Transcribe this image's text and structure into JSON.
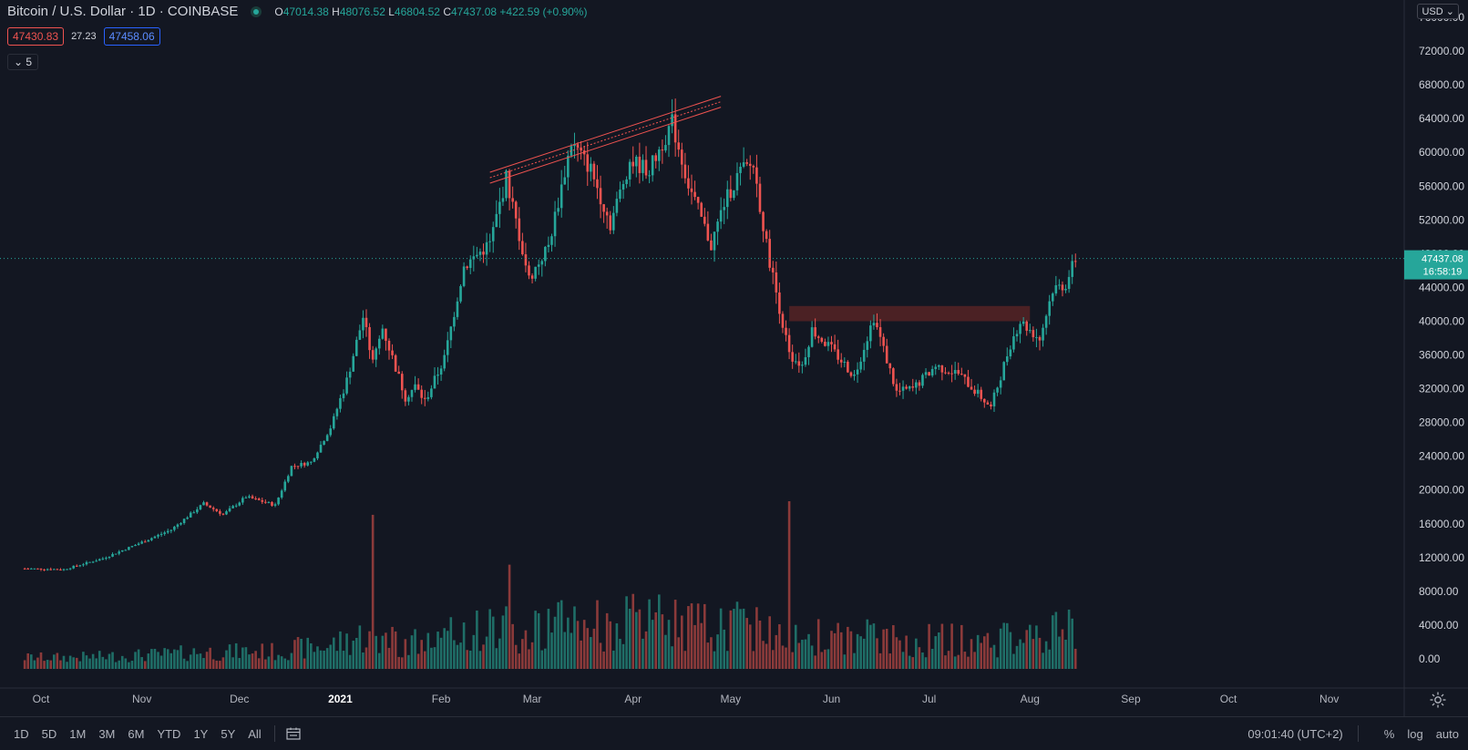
{
  "legend": {
    "symbol": "Bitcoin / U.S. Dollar · 1D · COINBASE",
    "o_label": "O",
    "o": "47014.38",
    "h_label": "H",
    "h": "48076.52",
    "l_label": "L",
    "l": "46804.52",
    "c_label": "C",
    "c": "47437.08",
    "change": "+422.59 (+0.90%)"
  },
  "quote": {
    "sell": "47430.83",
    "spread": "27.23",
    "buy": "47458.06"
  },
  "indicators_toggle": "5",
  "currency_button": "USD",
  "last_price": {
    "value": "47437.08",
    "countdown": "16:58:19"
  },
  "bottom_bar": {
    "timeframes": [
      "1D",
      "5D",
      "1M",
      "3M",
      "6M",
      "YTD",
      "1Y",
      "5Y",
      "All"
    ],
    "clock": "09:01:40 (UTC+2)",
    "percent": "%",
    "log": "log",
    "auto": "auto"
  },
  "colors": {
    "up": "#26a69a",
    "down": "#ef5350",
    "background": "#131722",
    "grid": "#1e222d",
    "zone": "#5a2426"
  },
  "chart_data": {
    "type": "candlestick",
    "title": "Bitcoin / U.S. Dollar",
    "interval": "1D",
    "exchange": "COINBASE",
    "x_labels": [
      "Oct",
      "Nov",
      "Dec",
      "2021",
      "Feb",
      "Mar",
      "Apr",
      "May",
      "Jun",
      "Jul",
      "Aug",
      "Sep",
      "Oct",
      "Nov"
    ],
    "y_ticks": [
      0,
      4000,
      8000,
      12000,
      16000,
      20000,
      24000,
      28000,
      32000,
      36000,
      40000,
      44000,
      48000,
      52000,
      56000,
      60000,
      64000,
      68000,
      72000,
      76000
    ],
    "ylim": [
      0,
      76000
    ],
    "legend": "none",
    "grid": false,
    "price_path": [
      [
        "2020-09-26",
        10700
      ],
      [
        "2020-10-08",
        10600
      ],
      [
        "2020-10-20",
        11900
      ],
      [
        "2020-10-30",
        13500
      ],
      [
        "2020-11-10",
        15300
      ],
      [
        "2020-11-20",
        18400
      ],
      [
        "2020-11-26",
        17100
      ],
      [
        "2020-12-03",
        19200
      ],
      [
        "2020-12-12",
        18200
      ],
      [
        "2020-12-17",
        22800
      ],
      [
        "2020-12-23",
        23300
      ],
      [
        "2020-12-29",
        27400
      ],
      [
        "2021-01-03",
        33000
      ],
      [
        "2021-01-08",
        40500
      ],
      [
        "2021-01-11",
        35000
      ],
      [
        "2021-01-14",
        39200
      ],
      [
        "2021-01-21",
        31000
      ],
      [
        "2021-01-24",
        32300
      ],
      [
        "2021-01-27",
        30500
      ],
      [
        "2021-02-02",
        35600
      ],
      [
        "2021-02-08",
        46500
      ],
      [
        "2021-02-16",
        49200
      ],
      [
        "2021-02-21",
        57000
      ],
      [
        "2021-02-28",
        45000
      ],
      [
        "2021-03-06",
        48900
      ],
      [
        "2021-03-13",
        61200
      ],
      [
        "2021-03-19",
        58000
      ],
      [
        "2021-03-25",
        51500
      ],
      [
        "2021-03-31",
        59000
      ],
      [
        "2021-04-06",
        57900
      ],
      [
        "2021-04-13",
        63500
      ],
      [
        "2021-04-18",
        56200
      ],
      [
        "2021-04-25",
        49000
      ],
      [
        "2021-04-29",
        54000
      ],
      [
        "2021-05-04",
        57800
      ],
      [
        "2021-05-08",
        58500
      ],
      [
        "2021-05-12",
        49000
      ],
      [
        "2021-05-19",
        36000
      ],
      [
        "2021-05-23",
        34800
      ],
      [
        "2021-05-26",
        39000
      ],
      [
        "2021-06-01",
        36700
      ],
      [
        "2021-06-08",
        33500
      ],
      [
        "2021-06-14",
        40500
      ],
      [
        "2021-06-21",
        31600
      ],
      [
        "2021-06-26",
        32000
      ],
      [
        "2021-07-03",
        34700
      ],
      [
        "2021-07-10",
        33800
      ],
      [
        "2021-07-20",
        29800
      ],
      [
        "2021-07-26",
        37300
      ],
      [
        "2021-07-29",
        40000
      ],
      [
        "2021-08-04",
        37900
      ],
      [
        "2021-08-08",
        43800
      ],
      [
        "2021-08-12",
        44400
      ],
      [
        "2021-08-15",
        47437
      ]
    ],
    "volume_ylim": [
      0,
      76000
    ],
    "volume_peaks": [
      {
        "date": "2021-01-11",
        "value": 17000
      },
      {
        "date": "2021-02-22",
        "value": 11500
      },
      {
        "date": "2021-05-19",
        "value": 18500
      }
    ],
    "annotations": [
      {
        "type": "trend_channel",
        "from": [
          "2021-02-16",
          57000
        ],
        "to": [
          "2021-04-28",
          66000
        ]
      },
      {
        "type": "zone",
        "from_date": "2021-05-19",
        "to_date": "2021-08-01",
        "y_low": 40000,
        "y_high": 41800
      }
    ]
  }
}
